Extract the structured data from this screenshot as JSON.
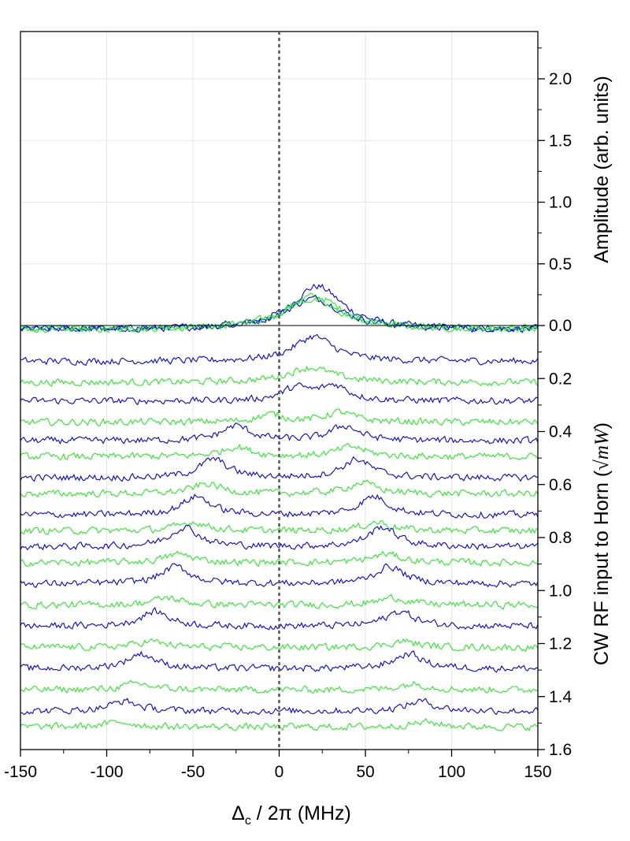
{
  "chart_data": {
    "type": "line",
    "xlabel": {
      "symbol": "Δ",
      "subscript": "c",
      "rest": " / 2π (MHz)"
    },
    "right_axis_upper": {
      "label": "Amplitude (arb. units)",
      "range": [
        0,
        2.4
      ],
      "ticks": [
        0.0,
        0.5,
        1.0,
        1.5,
        2.0
      ],
      "tick_labels": [
        "0.0",
        "0.5",
        "1.0",
        "1.5",
        "2.0"
      ]
    },
    "right_axis_lower": {
      "label_prefix": "CW RF input to Horn (",
      "label_math": "√mW",
      "label_suffix": ")",
      "range": [
        0,
        1.6
      ],
      "ticks": [
        0.2,
        0.4,
        0.6,
        0.8,
        1.0,
        1.2,
        1.4,
        1.6
      ],
      "tick_labels": [
        "0.2",
        "0.4",
        "0.6",
        "0.8",
        "1.0",
        "1.2",
        "1.4",
        "1.6"
      ]
    },
    "xlim": [
      -150,
      150
    ],
    "x_ticks": [
      -150,
      -100,
      -50,
      0,
      50,
      100,
      150
    ],
    "x_tick_labels": [
      "-150",
      "-100",
      "-50",
      "0",
      "50",
      "100",
      "150"
    ],
    "vertical_marker_x": 0,
    "grid": true,
    "series_colors": [
      "#0000ee",
      "#22ee22"
    ],
    "traces": [
      {
        "rf_input": 0.0,
        "color": "blue",
        "peaks": [
          [
            22,
            0.35,
            18
          ]
        ]
      },
      {
        "rf_input": 0.0,
        "color": "green",
        "peaks": [
          [
            20,
            0.27,
            20
          ]
        ]
      },
      {
        "rf_input": 0.0,
        "color": "blue",
        "peaks": [
          [
            20,
            0.25,
            20
          ]
        ]
      },
      {
        "rf_input": 0.0,
        "color": "green",
        "peaks": [
          [
            18,
            0.24,
            20
          ]
        ]
      },
      {
        "rf_input": 0.12,
        "color": "blue",
        "peaks": [
          [
            20,
            0.2,
            14
          ]
        ]
      },
      {
        "rf_input": 0.2,
        "color": "green",
        "peaks": [
          [
            18,
            0.12,
            16
          ]
        ]
      },
      {
        "rf_input": 0.27,
        "color": "blue",
        "peaks": [
          [
            10,
            0.1,
            10
          ],
          [
            32,
            0.12,
            10
          ]
        ]
      },
      {
        "rf_input": 0.35,
        "color": "green",
        "peaks": [
          [
            -5,
            0.06,
            10
          ],
          [
            35,
            0.08,
            10
          ]
        ]
      },
      {
        "rf_input": 0.42,
        "color": "blue",
        "peaks": [
          [
            -25,
            0.12,
            10
          ],
          [
            38,
            0.12,
            10
          ]
        ]
      },
      {
        "rf_input": 0.48,
        "color": "green",
        "peaks": [
          [
            -25,
            0.08,
            10
          ],
          [
            42,
            0.08,
            10
          ]
        ]
      },
      {
        "rf_input": 0.56,
        "color": "blue",
        "peaks": [
          [
            -38,
            0.15,
            10
          ],
          [
            45,
            0.15,
            10
          ]
        ]
      },
      {
        "rf_input": 0.62,
        "color": "green",
        "peaks": [
          [
            -42,
            0.08,
            10
          ],
          [
            48,
            0.09,
            10
          ]
        ]
      },
      {
        "rf_input": 0.7,
        "color": "blue",
        "peaks": [
          [
            -48,
            0.15,
            10
          ],
          [
            55,
            0.15,
            10
          ]
        ]
      },
      {
        "rf_input": 0.76,
        "color": "green",
        "peaks": [
          [
            -50,
            0.07,
            10
          ],
          [
            57,
            0.07,
            10
          ]
        ]
      },
      {
        "rf_input": 0.82,
        "color": "blue",
        "peaks": [
          [
            -55,
            0.16,
            10
          ],
          [
            60,
            0.16,
            10
          ]
        ]
      },
      {
        "rf_input": 0.88,
        "color": "green",
        "peaks": [
          [
            -58,
            0.07,
            10
          ],
          [
            62,
            0.07,
            10
          ]
        ]
      },
      {
        "rf_input": 0.96,
        "color": "blue",
        "peaks": [
          [
            -60,
            0.14,
            10
          ],
          [
            64,
            0.14,
            10
          ]
        ]
      },
      {
        "rf_input": 1.04,
        "color": "green",
        "peaks": [
          [
            -65,
            0.06,
            10
          ],
          [
            66,
            0.06,
            10
          ]
        ]
      },
      {
        "rf_input": 1.12,
        "color": "blue",
        "peaks": [
          [
            -72,
            0.12,
            10
          ],
          [
            70,
            0.12,
            10
          ]
        ]
      },
      {
        "rf_input": 1.2,
        "color": "green",
        "peaks": [
          [
            -75,
            0.05,
            10
          ],
          [
            72,
            0.05,
            10
          ]
        ]
      },
      {
        "rf_input": 1.28,
        "color": "blue",
        "peaks": [
          [
            -80,
            0.12,
            10
          ],
          [
            75,
            0.12,
            10
          ]
        ]
      },
      {
        "rf_input": 1.36,
        "color": "green",
        "peaks": [
          [
            -82,
            0.05,
            10
          ],
          [
            78,
            0.05,
            10
          ]
        ]
      },
      {
        "rf_input": 1.44,
        "color": "blue",
        "peaks": [
          [
            -90,
            0.08,
            10
          ],
          [
            82,
            0.08,
            10
          ]
        ]
      },
      {
        "rf_input": 1.5,
        "color": "green",
        "peaks": [
          [
            -92,
            0.04,
            10
          ],
          [
            85,
            0.04,
            10
          ]
        ]
      }
    ]
  }
}
